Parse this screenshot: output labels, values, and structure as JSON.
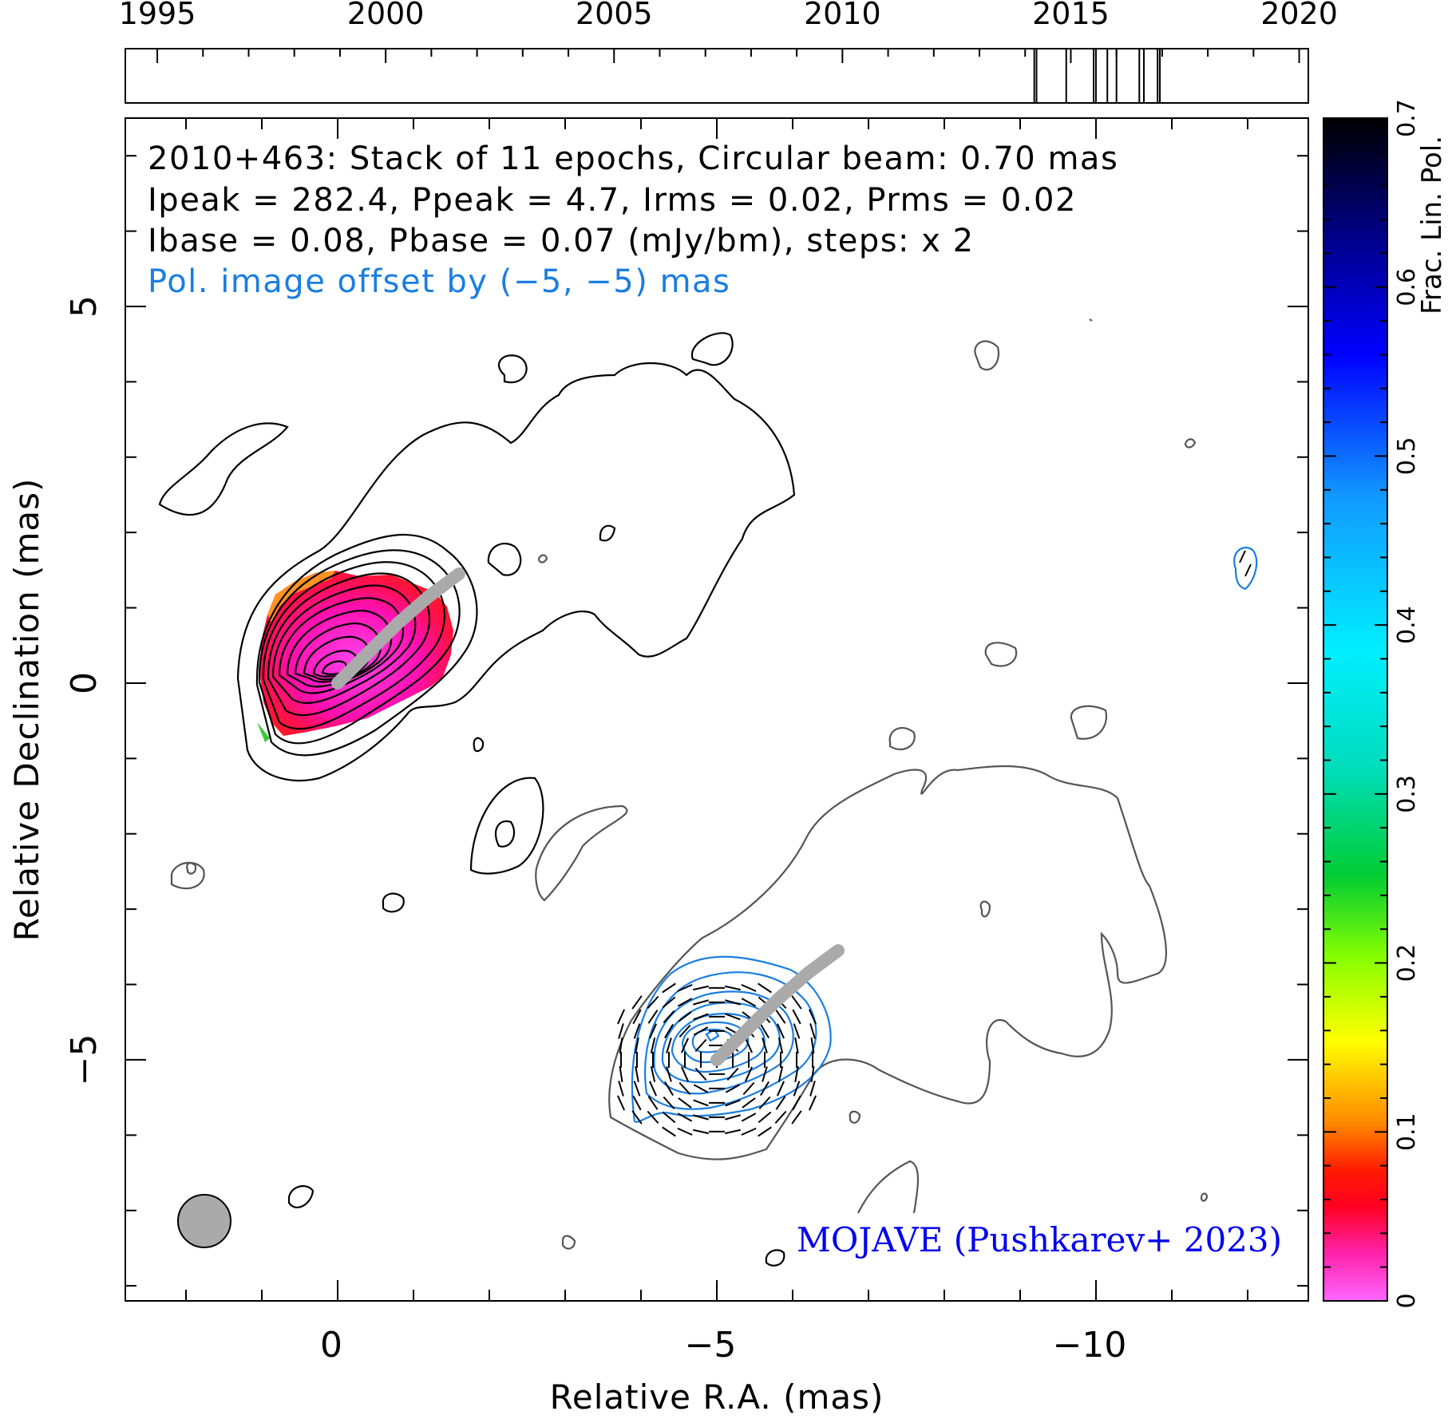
{
  "chart_data": {
    "type": "contour",
    "source": "2010+463",
    "annotations": {
      "line1": "2010+463: Stack of 11 epochs, Circular beam: 0.70 mas",
      "line2": "Ipeak = 282.4, Ppeak = 4.7, Irms = 0.02, Prms = 0.02",
      "line3": "Ibase = 0.08, Pbase = 0.07 (mJy/bm), steps: x 2",
      "offset_note": "Pol. image offset by (−5, −5) mas",
      "credit": "MOJAVE (Pushkarev+ 2023)"
    },
    "xlabel": "Relative R.A. (mas)",
    "ylabel": "Relative Declination (mas)",
    "x_range": [
      2.8,
      -12.8
    ],
    "y_range": [
      -8.2,
      7.5
    ],
    "x_ticks": [
      0,
      -5,
      -10
    ],
    "x_tick_labels": [
      "0",
      "−5",
      "−10"
    ],
    "y_ticks": [
      5,
      0,
      -5
    ],
    "y_tick_labels": [
      "5",
      "0",
      "−5"
    ],
    "epoch_axis": {
      "range": [
        1994.3,
        2020.2
      ],
      "tick_years": [
        1995,
        2000,
        2005,
        2010,
        2015,
        2020
      ],
      "tick_labels": [
        "1995",
        "2000",
        "2005",
        "2010",
        "2015",
        "2020"
      ],
      "epochs": [
        2014.2,
        2014.9,
        2015.5,
        2015.8,
        2016.0,
        2016.5,
        2016.6,
        2016.9,
        2016.95,
        2014.25,
        2015.55
      ]
    },
    "colorbar": {
      "label": "Frac. Lin. Pol.",
      "range": [
        0,
        0.7
      ],
      "ticks": [
        0,
        0.1,
        0.2,
        0.3,
        0.4,
        0.5,
        0.6,
        0.7
      ],
      "tick_labels": [
        "0",
        "0.1",
        "0.2",
        "0.3",
        "0.4",
        "0.5",
        "0.6",
        "0.7"
      ]
    },
    "beam_fwhm_mas": 0.7,
    "total_intensity": {
      "core_position": [
        0,
        0
      ],
      "contour_levels": 11,
      "peak_mJy_per_beam": 282.4,
      "base_mJy_per_beam": 0.08
    },
    "polarization": {
      "offset_mas": [
        -5,
        -5
      ],
      "peak_mJy_per_beam": 4.7,
      "base_mJy_per_beam": 0.07,
      "fractional_pol_core": 0.02
    },
    "ridge_line": [
      [
        0.0,
        0.0
      ],
      [
        -0.4,
        0.4
      ],
      [
        -0.8,
        0.8
      ],
      [
        -1.2,
        1.15
      ],
      [
        -1.6,
        1.45
      ]
    ]
  }
}
